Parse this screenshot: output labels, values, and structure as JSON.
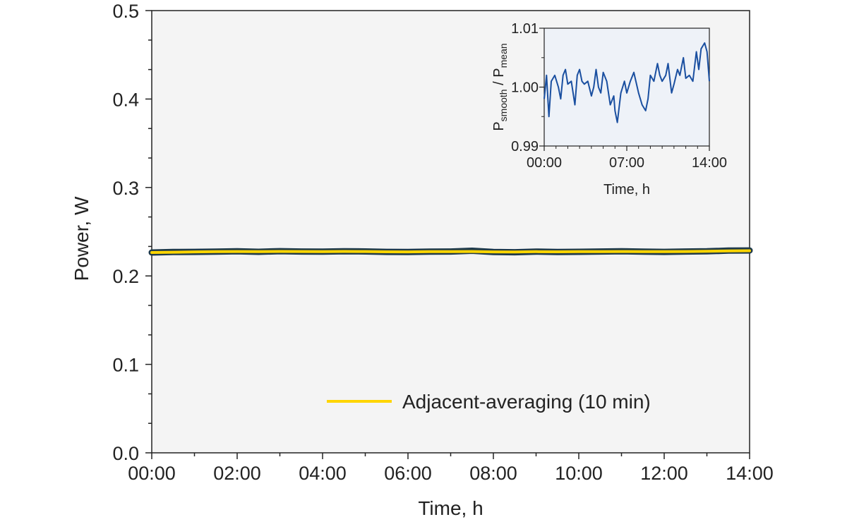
{
  "colors": {
    "plot_bg": "#f4f4f4",
    "inset_bg": "#eef2f8",
    "raw": "#1f3a4a",
    "smooth": "#ffd500",
    "inset_line": "#1a4fa0",
    "axis": "#222222"
  },
  "chart_data": [
    {
      "type": "line",
      "title": "",
      "xlabel": "Time, h",
      "ylabel": "Power, W",
      "xlim": [
        0,
        14
      ],
      "ylim": [
        0,
        0.5
      ],
      "x_tick_values": [
        0,
        2,
        4,
        6,
        8,
        10,
        12,
        14
      ],
      "x_tick_labels": [
        "00:00",
        "02:00",
        "04:00",
        "06:00",
        "08:00",
        "10:00",
        "12:00",
        "14:00"
      ],
      "y_tick_values": [
        0,
        0.1,
        0.2,
        0.3,
        0.4,
        0.5
      ],
      "y_tick_labels": [
        "0.0",
        "0.1",
        "0.2",
        "0.3",
        "0.4",
        "0.5"
      ],
      "legend": {
        "position": "bottom-right",
        "entries": [
          "Adjacent-averaging (10 min)"
        ]
      },
      "grid": false,
      "series": [
        {
          "role": "raw",
          "x": [
            0,
            0.5,
            1,
            1.5,
            2,
            2.5,
            3,
            3.5,
            4,
            4.5,
            5,
            5.5,
            6,
            6.5,
            7,
            7.5,
            8,
            8.5,
            9,
            9.5,
            10,
            10.5,
            11,
            11.5,
            12,
            12.5,
            13,
            13.5,
            14
          ],
          "y": [
            0.2265,
            0.227,
            0.2272,
            0.2275,
            0.2278,
            0.2273,
            0.228,
            0.2276,
            0.2274,
            0.2279,
            0.2277,
            0.2272,
            0.227,
            0.2275,
            0.2276,
            0.2285,
            0.227,
            0.2268,
            0.2275,
            0.227,
            0.2273,
            0.2276,
            0.2278,
            0.2275,
            0.2272,
            0.2276,
            0.2278,
            0.2286,
            0.2288
          ]
        },
        {
          "name": "Adjacent-averaging (10 min)",
          "role": "smooth",
          "x": [
            0,
            0.5,
            1,
            1.5,
            2,
            2.5,
            3,
            3.5,
            4,
            4.5,
            5,
            5.5,
            6,
            6.5,
            7,
            7.5,
            8,
            8.5,
            9,
            9.5,
            10,
            10.5,
            11,
            11.5,
            12,
            12.5,
            13,
            13.5,
            14
          ],
          "y": [
            0.2265,
            0.2268,
            0.2272,
            0.2274,
            0.2276,
            0.2275,
            0.2277,
            0.2276,
            0.2275,
            0.2277,
            0.2276,
            0.2273,
            0.2272,
            0.2274,
            0.2275,
            0.2276,
            0.2272,
            0.2271,
            0.2274,
            0.2273,
            0.2274,
            0.2275,
            0.2276,
            0.2275,
            0.2274,
            0.2276,
            0.2278,
            0.2283,
            0.2285
          ]
        }
      ]
    },
    {
      "type": "line",
      "title": "",
      "xlabel": "Time, h",
      "ylabel": "P",
      "ylabel_sub1": "smooth",
      "ylabel_mid": " / P",
      "ylabel_sub2": "mean",
      "xlim": [
        0,
        14
      ],
      "ylim": [
        0.99,
        1.01
      ],
      "x_tick_values": [
        0,
        7,
        14
      ],
      "x_tick_labels": [
        "00:00",
        "07:00",
        "14:00"
      ],
      "y_tick_values": [
        0.99,
        1.0,
        1.01
      ],
      "y_tick_labels": [
        "0.99",
        "1.00",
        "1.01"
      ],
      "series": [
        {
          "x": [
            0,
            0.2,
            0.4,
            0.6,
            0.9,
            1.2,
            1.4,
            1.6,
            1.8,
            2.0,
            2.3,
            2.6,
            2.8,
            3.0,
            3.2,
            3.4,
            3.7,
            4.0,
            4.2,
            4.4,
            4.6,
            4.8,
            5.0,
            5.3,
            5.6,
            5.9,
            6.0,
            6.2,
            6.5,
            6.8,
            7.0,
            7.3,
            7.6,
            8.0,
            8.3,
            8.6,
            8.8,
            9.0,
            9.3,
            9.6,
            9.8,
            10.0,
            10.3,
            10.5,
            10.8,
            11.0,
            11.3,
            11.5,
            11.8,
            12.0,
            12.3,
            12.6,
            12.9,
            13.1,
            13.3,
            13.6,
            13.8,
            14.0
          ],
          "y": [
            0.998,
            1.002,
            0.995,
            1.001,
            1.002,
            1.0,
            0.998,
            1.002,
            1.003,
            1.0005,
            1.001,
            0.997,
            1.002,
            1.003,
            1.001,
            1.0005,
            1.001,
            0.9985,
            1.0,
            1.003,
            1.0,
            0.999,
            1.0025,
            1.001,
            0.997,
            0.9985,
            0.996,
            0.994,
            0.999,
            1.001,
            0.999,
            1.001,
            1.0025,
            0.999,
            0.997,
            0.996,
            0.998,
            1.002,
            1.001,
            1.004,
            1.002,
            1.001,
            1.002,
            1.004,
            0.999,
            1.0005,
            1.003,
            1.002,
            1.005,
            1.0015,
            1.002,
            1.001,
            1.006,
            1.003,
            1.0065,
            1.0075,
            1.006,
            1.001
          ]
        }
      ]
    }
  ]
}
